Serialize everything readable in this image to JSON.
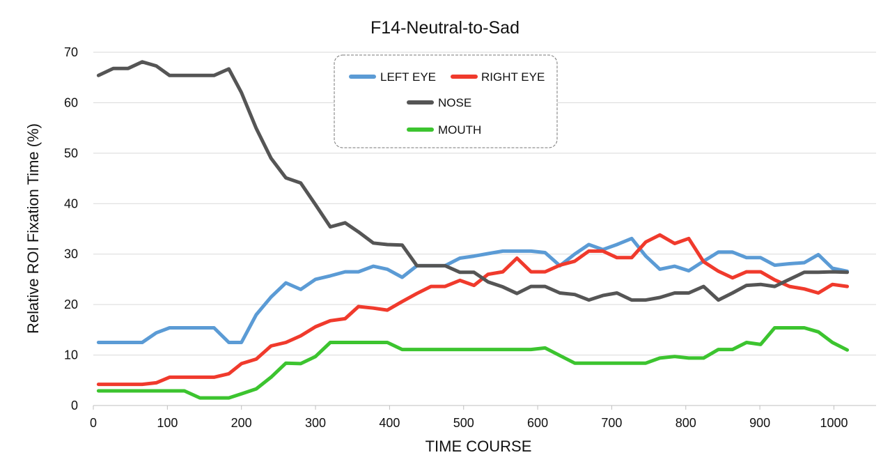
{
  "chart_data": {
    "type": "line",
    "title": "F14-Neutral-to-Sad",
    "xlabel": "TIME  COURSE",
    "ylabel": "Relative  ROI  Fixation  Time  (%)",
    "xlim": [
      0,
      1040
    ],
    "ylim": [
      0,
      70
    ],
    "xticks": [
      0,
      100,
      200,
      300,
      400,
      500,
      600,
      700,
      800,
      900,
      1000
    ],
    "yticks": [
      0,
      10,
      20,
      30,
      40,
      50,
      60,
      70
    ],
    "grid": "horizontal",
    "legend_position": "top-center",
    "x": [
      7,
      27,
      47,
      66,
      85,
      103,
      123,
      144,
      163,
      183,
      200,
      220,
      240,
      260,
      280,
      300,
      320,
      340,
      358,
      378,
      397,
      417,
      437,
      456,
      475,
      495,
      514,
      533,
      553,
      572,
      591,
      610,
      630,
      650,
      669,
      688,
      707,
      727,
      746,
      765,
      785,
      804,
      824,
      844,
      863,
      882,
      901,
      920,
      940,
      960,
      979,
      998,
      1018
    ],
    "series": [
      {
        "name": "LEFT EYE",
        "color": "#5b9bd5",
        "values": [
          12.5,
          12.5,
          12.5,
          12.5,
          14.4,
          15.4,
          15.4,
          15.4,
          15.4,
          12.5,
          12.5,
          18.0,
          21.5,
          24.3,
          23.0,
          25.0,
          25.7,
          26.5,
          26.5,
          27.6,
          27.0,
          25.4,
          27.7,
          27.7,
          27.7,
          29.2,
          29.6,
          30.1,
          30.6,
          30.6,
          30.6,
          30.3,
          27.7,
          30.0,
          31.9,
          30.9,
          31.9,
          33.1,
          29.6,
          27.0,
          27.6,
          26.7,
          28.6,
          30.4,
          30.4,
          29.3,
          29.3,
          27.8,
          28.1,
          28.3,
          29.9,
          27.2,
          26.6
        ]
      },
      {
        "name": "RIGHT EYE",
        "color": "#f03a2c",
        "values": [
          4.2,
          4.2,
          4.2,
          4.2,
          4.5,
          5.6,
          5.6,
          5.6,
          5.6,
          6.3,
          8.3,
          9.2,
          11.8,
          12.5,
          13.8,
          15.6,
          16.8,
          17.2,
          19.6,
          19.3,
          18.9,
          20.6,
          22.2,
          23.6,
          23.6,
          24.8,
          23.8,
          26.0,
          26.5,
          29.2,
          26.5,
          26.5,
          27.8,
          28.6,
          30.6,
          30.6,
          29.3,
          29.3,
          32.4,
          33.8,
          32.1,
          33.1,
          28.5,
          26.6,
          25.3,
          26.5,
          26.5,
          24.9,
          23.6,
          23.1,
          22.3,
          24.0,
          23.6
        ]
      },
      {
        "name": "NOSE",
        "color": "#555555",
        "values": [
          65.4,
          66.8,
          66.8,
          68.1,
          67.3,
          65.4,
          65.4,
          65.4,
          65.4,
          66.7,
          62.0,
          54.9,
          49.0,
          45.1,
          44.1,
          39.8,
          35.4,
          36.2,
          34.4,
          32.2,
          31.9,
          31.8,
          27.7,
          27.7,
          27.7,
          26.4,
          26.4,
          24.5,
          23.5,
          22.2,
          23.6,
          23.6,
          22.3,
          22.0,
          20.9,
          21.8,
          22.3,
          20.9,
          20.9,
          21.4,
          22.3,
          22.3,
          23.6,
          20.9,
          22.3,
          23.8,
          24.0,
          23.6,
          25.0,
          26.4,
          26.4,
          26.5,
          26.4
        ]
      },
      {
        "name": "MOUTH",
        "color": "#3cc42f",
        "values": [
          2.9,
          2.9,
          2.9,
          2.9,
          2.9,
          2.9,
          2.9,
          1.5,
          1.5,
          1.5,
          2.3,
          3.3,
          5.6,
          8.4,
          8.3,
          9.7,
          12.5,
          12.5,
          12.5,
          12.5,
          12.5,
          11.1,
          11.1,
          11.1,
          11.1,
          11.1,
          11.1,
          11.1,
          11.1,
          11.1,
          11.1,
          11.4,
          9.9,
          8.4,
          8.4,
          8.4,
          8.4,
          8.4,
          8.4,
          9.4,
          9.7,
          9.4,
          9.4,
          11.1,
          11.1,
          12.5,
          12.1,
          15.4,
          15.4,
          15.4,
          14.6,
          12.5,
          11.0
        ]
      }
    ]
  }
}
